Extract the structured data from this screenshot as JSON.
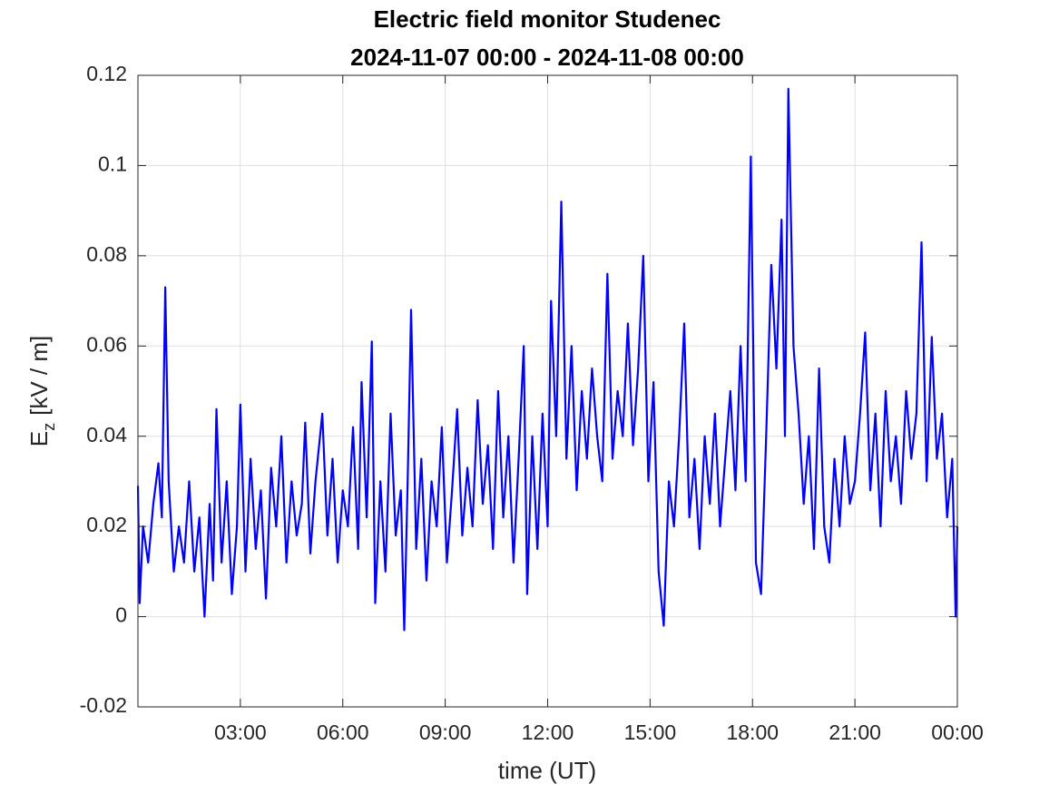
{
  "chart_data": {
    "type": "line",
    "title": "Electric field monitor Studenec",
    "subtitle": "2024-11-07 00:00 - 2024-11-08 00:00",
    "x_label": "time (UT)",
    "y_label": "E",
    "y_label_subscript": "z",
    "y_label_unit": "[kV / m]",
    "grid": true,
    "xlim": [
      0,
      24
    ],
    "xticks": [
      {
        "value": 3,
        "label": "03:00"
      },
      {
        "value": 6,
        "label": "06:00"
      },
      {
        "value": 9,
        "label": "09:00"
      },
      {
        "value": 12,
        "label": "12:00"
      },
      {
        "value": 15,
        "label": "15:00"
      },
      {
        "value": 18,
        "label": "18:00"
      },
      {
        "value": 21,
        "label": "21:00"
      },
      {
        "value": 24,
        "label": "00:00"
      }
    ],
    "ylim": [
      -0.02,
      0.12
    ],
    "yticks": [
      -0.02,
      0,
      0.02,
      0.04,
      0.06,
      0.08,
      0.1,
      0.12
    ],
    "x": [
      0,
      0.05,
      0.15,
      0.3,
      0.45,
      0.6,
      0.7,
      0.8,
      0.9,
      1.05,
      1.2,
      1.35,
      1.5,
      1.65,
      1.8,
      1.95,
      2.1,
      2.2,
      2.3,
      2.45,
      2.6,
      2.75,
      2.9,
      3.0,
      3.15,
      3.3,
      3.45,
      3.6,
      3.75,
      3.9,
      4.05,
      4.2,
      4.35,
      4.5,
      4.65,
      4.8,
      4.9,
      5.05,
      5.2,
      5.4,
      5.55,
      5.7,
      5.85,
      6.0,
      6.15,
      6.3,
      6.45,
      6.55,
      6.7,
      6.85,
      6.95,
      7.1,
      7.25,
      7.4,
      7.55,
      7.7,
      7.8,
      7.9,
      8.0,
      8.15,
      8.3,
      8.45,
      8.6,
      8.75,
      8.9,
      9.05,
      9.2,
      9.35,
      9.5,
      9.65,
      9.8,
      9.95,
      10.1,
      10.25,
      10.4,
      10.55,
      10.7,
      10.85,
      11.0,
      11.15,
      11.3,
      11.4,
      11.55,
      11.7,
      11.85,
      12.0,
      12.1,
      12.25,
      12.4,
      12.55,
      12.7,
      12.85,
      13.0,
      13.15,
      13.3,
      13.45,
      13.6,
      13.75,
      13.9,
      14.05,
      14.2,
      14.35,
      14.5,
      14.65,
      14.8,
      14.95,
      15.1,
      15.25,
      15.4,
      15.55,
      15.7,
      15.85,
      16.0,
      16.15,
      16.3,
      16.45,
      16.6,
      16.75,
      16.9,
      17.05,
      17.2,
      17.35,
      17.5,
      17.65,
      17.8,
      17.95,
      18.1,
      18.25,
      18.4,
      18.55,
      18.7,
      18.85,
      18.95,
      19.05,
      19.2,
      19.35,
      19.5,
      19.65,
      19.8,
      19.95,
      20.1,
      20.25,
      20.4,
      20.55,
      20.7,
      20.85,
      21.0,
      21.15,
      21.3,
      21.45,
      21.6,
      21.75,
      21.9,
      22.05,
      22.2,
      22.35,
      22.5,
      22.65,
      22.8,
      22.95,
      23.1,
      23.25,
      23.4,
      23.55,
      23.7,
      23.85,
      23.95,
      24.0
    ],
    "series": [
      {
        "color": "#0000ff",
        "values": [
          0.029,
          0.003,
          0.02,
          0.012,
          0.025,
          0.034,
          0.022,
          0.073,
          0.03,
          0.01,
          0.02,
          0.012,
          0.03,
          0.01,
          0.022,
          0.0,
          0.025,
          0.008,
          0.046,
          0.012,
          0.03,
          0.005,
          0.02,
          0.047,
          0.01,
          0.035,
          0.015,
          0.028,
          0.004,
          0.033,
          0.02,
          0.04,
          0.012,
          0.03,
          0.018,
          0.025,
          0.043,
          0.014,
          0.03,
          0.045,
          0.018,
          0.035,
          0.012,
          0.028,
          0.02,
          0.042,
          0.015,
          0.052,
          0.022,
          0.061,
          0.003,
          0.03,
          0.01,
          0.045,
          0.018,
          0.028,
          -0.003,
          0.03,
          0.068,
          0.015,
          0.035,
          0.008,
          0.03,
          0.02,
          0.042,
          0.012,
          0.028,
          0.046,
          0.018,
          0.033,
          0.02,
          0.048,
          0.025,
          0.038,
          0.015,
          0.05,
          0.022,
          0.04,
          0.012,
          0.035,
          0.06,
          0.005,
          0.04,
          0.015,
          0.045,
          0.02,
          0.07,
          0.04,
          0.092,
          0.035,
          0.06,
          0.028,
          0.05,
          0.035,
          0.055,
          0.04,
          0.03,
          0.076,
          0.035,
          0.05,
          0.04,
          0.065,
          0.038,
          0.055,
          0.08,
          0.03,
          0.052,
          0.01,
          -0.002,
          0.03,
          0.02,
          0.04,
          0.065,
          0.022,
          0.035,
          0.015,
          0.04,
          0.025,
          0.045,
          0.02,
          0.035,
          0.05,
          0.028,
          0.06,
          0.03,
          0.102,
          0.012,
          0.005,
          0.04,
          0.078,
          0.055,
          0.088,
          0.04,
          0.117,
          0.06,
          0.045,
          0.025,
          0.04,
          0.015,
          0.055,
          0.02,
          0.012,
          0.035,
          0.02,
          0.04,
          0.025,
          0.03,
          0.045,
          0.063,
          0.028,
          0.045,
          0.02,
          0.05,
          0.03,
          0.04,
          0.025,
          0.05,
          0.035,
          0.045,
          0.083,
          0.03,
          0.062,
          0.035,
          0.045,
          0.022,
          0.035,
          0.0,
          0.02
        ]
      }
    ]
  }
}
